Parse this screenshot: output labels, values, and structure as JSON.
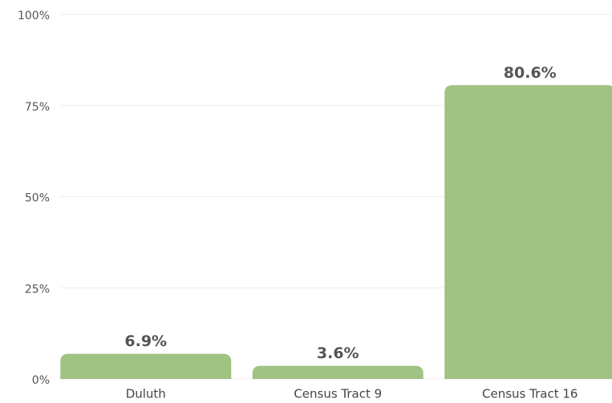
{
  "chart_data": {
    "type": "bar",
    "categories": [
      "Duluth",
      "Census Tract 9",
      "Census Tract 16"
    ],
    "values": [
      6.9,
      3.6,
      80.6
    ],
    "value_labels": [
      "6.9%",
      "3.6%",
      "80.6%"
    ],
    "color": "#a0c282",
    "ylim": [
      0,
      100
    ],
    "yticks": [
      {
        "value": 0,
        "label": "0%"
      },
      {
        "value": 25,
        "label": "25%"
      },
      {
        "value": 50,
        "label": "50%"
      },
      {
        "value": 75,
        "label": "75%"
      },
      {
        "value": 100,
        "label": "100%"
      }
    ],
    "grid": true
  }
}
